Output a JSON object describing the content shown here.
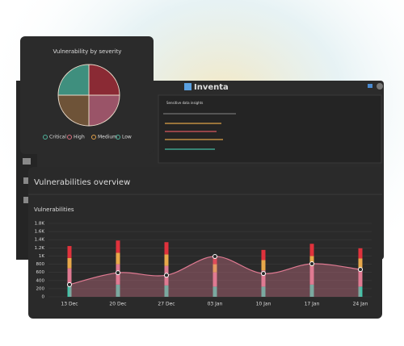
{
  "app": {
    "brand": "Inventa",
    "insights_title": "Sensitive data insights",
    "card_title": "Vulnerabilities overview"
  },
  "chart_data": [
    {
      "type": "pie",
      "title": "Vulnerability by severity",
      "categories": [
        "Critical",
        "High",
        "Medium",
        "Low"
      ],
      "values": [
        25,
        25,
        25,
        25
      ],
      "colors": [
        "#3f8f7e",
        "#8a2a34",
        "#9a5468",
        "#6e5338"
      ],
      "legend_colors": [
        "#4fb39c",
        "#d9707f",
        "#e0a04a",
        "#4fb39c"
      ]
    },
    {
      "type": "stacked-bar-line",
      "title": "Vulnerabilities",
      "categories": [
        "13 Dec",
        "20 Dec",
        "27 Dec",
        "03 Jan",
        "10 Jan",
        "17 Jan",
        "24 Jan"
      ],
      "series": [
        {
          "color": "#45c2a8",
          "values": [
            250,
            300,
            280,
            250,
            250,
            300,
            250
          ]
        },
        {
          "color": "#e07a92",
          "values": [
            450,
            500,
            480,
            350,
            400,
            450,
            420
          ]
        },
        {
          "color": "#e8a84a",
          "values": [
            250,
            280,
            280,
            200,
            250,
            250,
            270
          ]
        },
        {
          "color": "#e0323c",
          "values": [
            295,
            300,
            300,
            200,
            250,
            300,
            250
          ]
        }
      ],
      "line": {
        "color": "#e07a92",
        "values": [
          300,
          590,
          530,
          990,
          570,
          810,
          670
        ]
      },
      "ylim": [
        0,
        1800
      ],
      "yticks": [
        0,
        200,
        400,
        600,
        800,
        {
          "value": 1000,
          "label": "1K"
        },
        {
          "value": 1200,
          "label": "1.2K"
        },
        {
          "value": 1400,
          "label": "1.4K"
        },
        {
          "value": 1600,
          "label": "1.6K"
        },
        {
          "value": 1800,
          "label": "1.8K"
        }
      ],
      "grid": true
    }
  ]
}
